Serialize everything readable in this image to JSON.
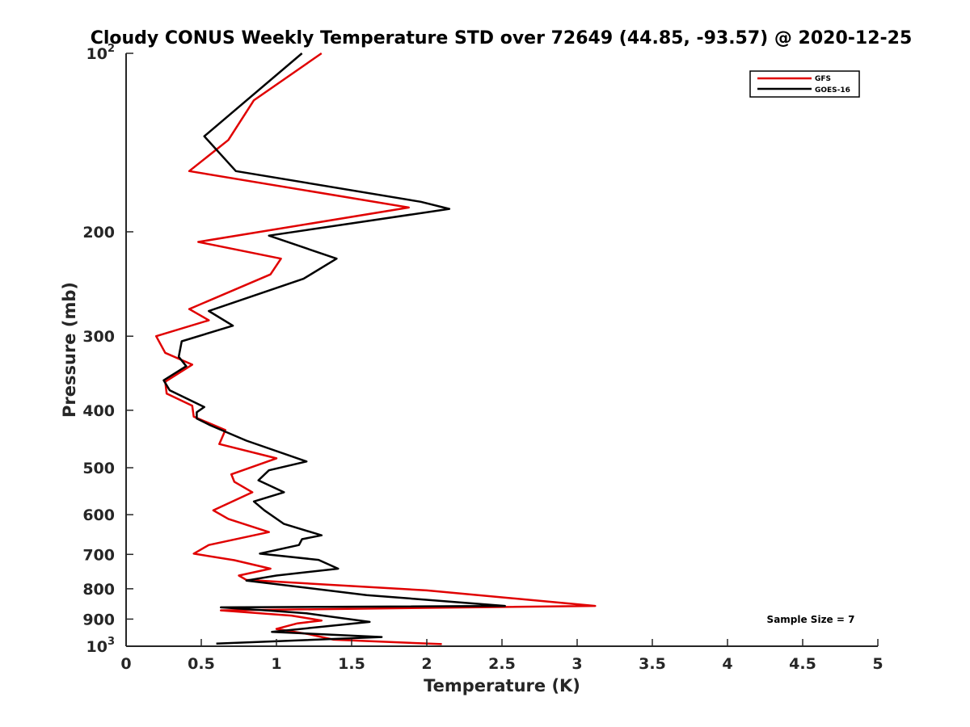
{
  "chart_data": {
    "type": "line",
    "title": "Cloudy CONUS Weekly Temperature STD over 72649 (44.85, -93.57) @ 2020-12-25",
    "xlabel": "Temperature (K)",
    "ylabel": "Pressure (mb)",
    "xlim": [
      0,
      5
    ],
    "ylim": [
      100,
      1000
    ],
    "yscale": "log",
    "y_reversed": true,
    "x_ticks": [
      "0",
      "0.5",
      "1",
      "1.5",
      "2",
      "2.5",
      "3",
      "3.5",
      "4",
      "4.5",
      "5"
    ],
    "y_ticks": [
      {
        "value": 100,
        "base": "10",
        "exp": "2"
      },
      {
        "value": 200,
        "label": "200"
      },
      {
        "value": 300,
        "label": "300"
      },
      {
        "value": 400,
        "label": "400"
      },
      {
        "value": 500,
        "label": "500"
      },
      {
        "value": 600,
        "label": "600"
      },
      {
        "value": 700,
        "label": "700"
      },
      {
        "value": 800,
        "label": "800"
      },
      {
        "value": 900,
        "label": "900"
      },
      {
        "value": 1000,
        "base": "10",
        "exp": "3"
      }
    ],
    "grid": false,
    "legend_position": "top-right",
    "series": [
      {
        "name": "GFS",
        "color": "#e00000",
        "points": [
          [
            1.3,
            100
          ],
          [
            0.85,
            120
          ],
          [
            0.68,
            140
          ],
          [
            0.42,
            158
          ],
          [
            1.88,
            182
          ],
          [
            0.48,
            208
          ],
          [
            1.03,
            222
          ],
          [
            0.96,
            236
          ],
          [
            0.42,
            270
          ],
          [
            0.55,
            282
          ],
          [
            0.2,
            300
          ],
          [
            0.26,
            320
          ],
          [
            0.44,
            335
          ],
          [
            0.26,
            358
          ],
          [
            0.27,
            375
          ],
          [
            0.44,
            393
          ],
          [
            0.45,
            410
          ],
          [
            0.66,
            432
          ],
          [
            0.62,
            456
          ],
          [
            1.0,
            482
          ],
          [
            0.7,
            513
          ],
          [
            0.72,
            528
          ],
          [
            0.84,
            550
          ],
          [
            0.58,
            590
          ],
          [
            0.68,
            610
          ],
          [
            0.95,
            642
          ],
          [
            0.55,
            675
          ],
          [
            0.45,
            698
          ],
          [
            0.72,
            716
          ],
          [
            0.96,
            740
          ],
          [
            0.75,
            760
          ],
          [
            0.8,
            773
          ],
          [
            2.0,
            805
          ],
          [
            3.12,
            855
          ],
          [
            0.63,
            870
          ],
          [
            1.1,
            888
          ],
          [
            1.3,
            905
          ],
          [
            1.14,
            915
          ],
          [
            1.0,
            935
          ],
          [
            1.22,
            955
          ],
          [
            1.38,
            975
          ],
          [
            2.1,
            992
          ]
        ]
      },
      {
        "name": "GOES-16",
        "color": "#000000",
        "points": [
          [
            1.17,
            100
          ],
          [
            0.52,
            138
          ],
          [
            0.73,
            158
          ],
          [
            1.96,
            178
          ],
          [
            2.15,
            183
          ],
          [
            0.95,
            203
          ],
          [
            1.4,
            222
          ],
          [
            1.18,
            240
          ],
          [
            0.55,
            272
          ],
          [
            0.71,
            288
          ],
          [
            0.37,
            306
          ],
          [
            0.35,
            325
          ],
          [
            0.4,
            337
          ],
          [
            0.25,
            356
          ],
          [
            0.29,
            370
          ],
          [
            0.52,
            395
          ],
          [
            0.47,
            403
          ],
          [
            0.47,
            413
          ],
          [
            0.56,
            424
          ],
          [
            0.8,
            450
          ],
          [
            1.2,
            488
          ],
          [
            0.95,
            505
          ],
          [
            0.88,
            525
          ],
          [
            1.05,
            550
          ],
          [
            0.85,
            570
          ],
          [
            0.92,
            590
          ],
          [
            1.05,
            622
          ],
          [
            1.3,
            650
          ],
          [
            1.17,
            660
          ],
          [
            1.15,
            675
          ],
          [
            0.89,
            698
          ],
          [
            1.28,
            715
          ],
          [
            1.41,
            740
          ],
          [
            1.0,
            760
          ],
          [
            0.8,
            775
          ],
          [
            1.6,
            820
          ],
          [
            2.52,
            855
          ],
          [
            0.63,
            860
          ],
          [
            0.98,
            872
          ],
          [
            1.2,
            880
          ],
          [
            1.62,
            910
          ],
          [
            1.25,
            930
          ],
          [
            0.97,
            946
          ],
          [
            1.7,
            965
          ],
          [
            0.6,
            990
          ]
        ]
      }
    ],
    "annotation": "Sample Size = 7"
  }
}
